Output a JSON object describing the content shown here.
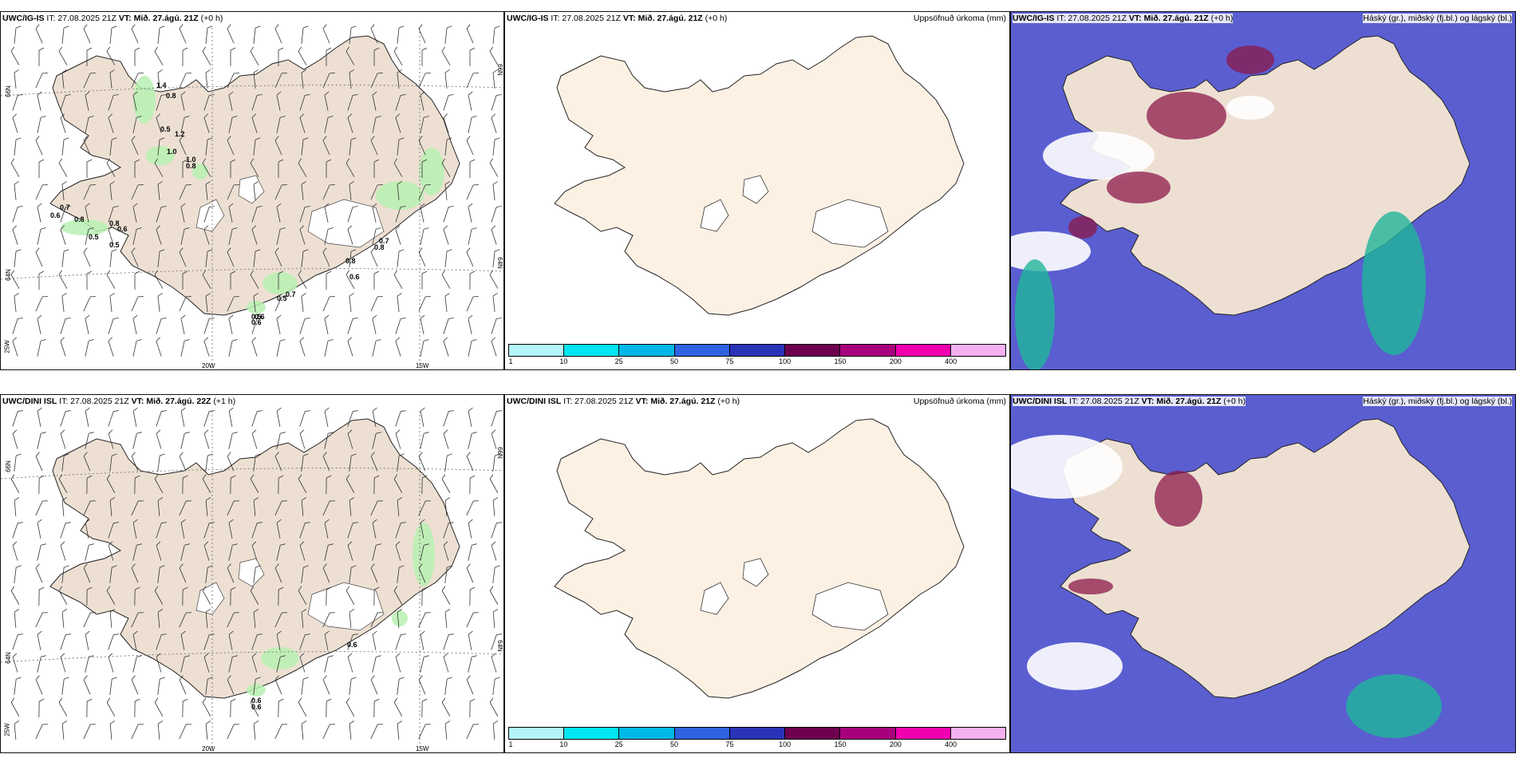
{
  "rows": [
    {
      "model": "UWC/IG-IS",
      "wind_panel": {
        "title_model": "UWC/IG-IS",
        "it_label": "IT: 27.08.2025 21Z",
        "vt_label": "VT: Mið. 27.ágú. 21Z",
        "lead": "(+0 h)",
        "precip_labels": [
          "1.4",
          "0.8",
          "0.5",
          "1.2",
          "1.0",
          "1.0",
          "0.8",
          "0.7",
          "0.6",
          "0.8",
          "0.8",
          "0.6",
          "0.5",
          "0.5",
          "0.7",
          "0.8",
          "0.8",
          "0.6",
          "0.7",
          "0.5",
          "0.5",
          "0.6",
          "0.6"
        ]
      },
      "precip_panel": {
        "title_model": "UWC/IG-IS",
        "it_label": "IT: 27.08.2025 21Z",
        "vt_label": "VT: Mið. 27.ágú. 21Z",
        "lead": "(+0 h)",
        "field_label": "Uppsöfnuð úrkoma (mm)"
      },
      "cloud_panel": {
        "title_model": "UWC/IG-IS",
        "it_label": "IT: 27.08.2025 21Z",
        "vt_label": "VT: Mið. 27.ágú. 21Z",
        "lead": "(+0 h)",
        "field_label": "Háský (gr.), miðský (fj.bl.) og lágský (bl.)"
      }
    },
    {
      "model": "UWC/DINI ISL",
      "wind_panel": {
        "title_model": "UWC/DINI ISL",
        "it_label": "IT: 27.08.2025 21Z",
        "vt_label": "VT: Mið. 27.ágú. 22Z",
        "lead": "(+1 h)",
        "precip_labels": [
          "0.6",
          "0.6",
          "0.6"
        ]
      },
      "precip_panel": {
        "title_model": "UWC/DINI ISL",
        "it_label": "IT: 27.08.2025 21Z",
        "vt_label": "VT: Mið. 27.ágú. 21Z",
        "lead": "(+0 h)",
        "field_label": "Uppsöfnuð úrkoma (mm)"
      },
      "cloud_panel": {
        "title_model": "UWC/DINI ISL",
        "it_label": "IT: 27.08.2025 21Z",
        "vt_label": "VT: Mið. 27.ágú. 21Z",
        "lead": "(+0 h)",
        "field_label": "Háský (gr.), miðský (fj.bl.) og lágský (bl.)"
      }
    }
  ],
  "grid_labels": {
    "lat_66": "66N",
    "lat_64": "64N",
    "lon_20": "20W",
    "lon_15": "15W",
    "lon_25": "25W"
  },
  "colorbar": {
    "ticks": [
      "1",
      "10",
      "25",
      "50",
      "75",
      "100",
      "150",
      "200",
      "400"
    ],
    "colors": [
      "#b3f5f8",
      "#00e5ef",
      "#00b8e8",
      "#2e62e0",
      "#2a33b8",
      "#6e0050",
      "#a8007d",
      "#f200b0",
      "#f5b0f0"
    ]
  },
  "colors": {
    "land_wind": "#ede0d3",
    "land_precip": "#fdf1e4",
    "precip_green": "#b7f0b1",
    "cloud_low": "#5a5ed0",
    "cloud_mid": "#1fb59a",
    "cloud_high": "#8c1a4a"
  }
}
